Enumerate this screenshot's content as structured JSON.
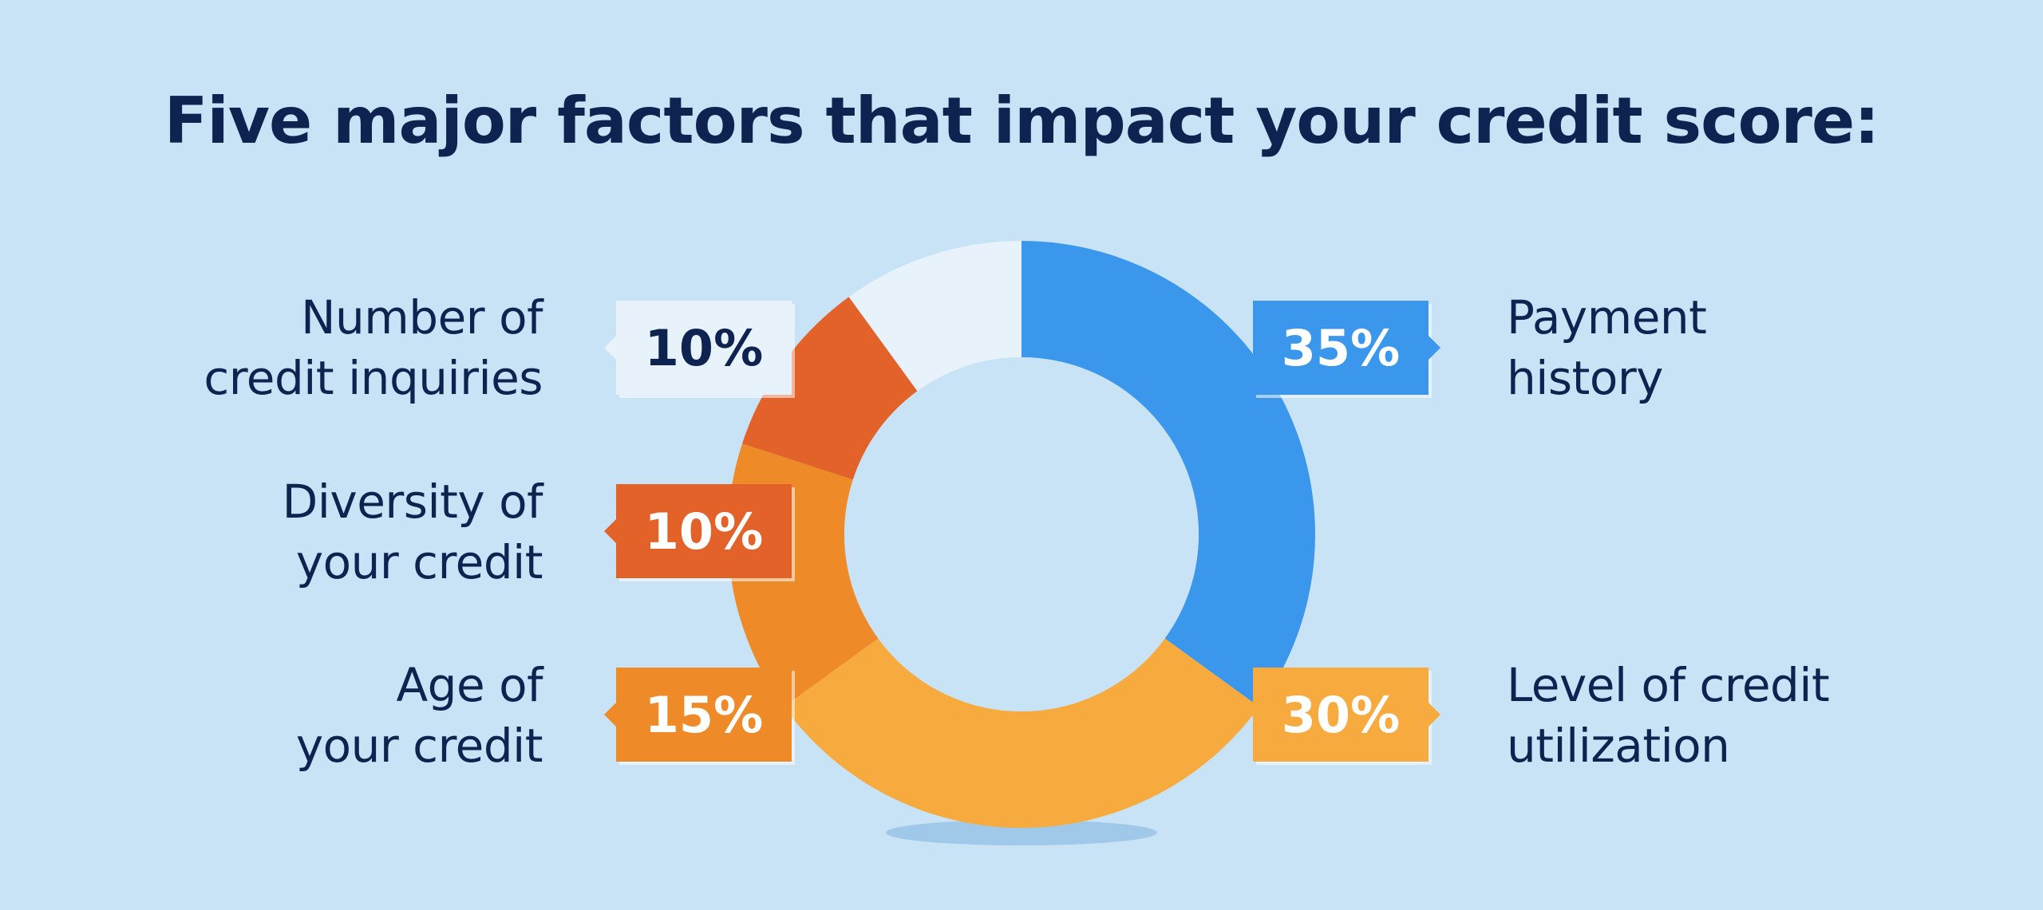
{
  "chart_data": {
    "type": "pie",
    "title": "Five major factors that impact your credit score:",
    "categories": [
      "Payment history",
      "Level of credit utilization",
      "Age of your credit",
      "Diversity of your credit",
      "Number of credit inquiries"
    ],
    "values": [
      35,
      30,
      15,
      10,
      10
    ],
    "value_labels": [
      "35%",
      "30%",
      "15%",
      "10%",
      "10%"
    ],
    "label_lines": [
      [
        "Payment",
        "history"
      ],
      [
        "Level of credit",
        "utilization"
      ],
      [
        "Age of",
        "your credit"
      ],
      [
        "Diversity of",
        "your credit"
      ],
      [
        "Number of",
        "credit inquiries"
      ]
    ],
    "colors": [
      "#3b97ec",
      "#f7aa3e",
      "#ee8a27",
      "#e3622a",
      "#e8f2fb"
    ],
    "badge_text_colors": [
      "#ffffff",
      "#ffffff",
      "#ffffff",
      "#ffffff",
      "#0e2350"
    ],
    "background_color": "#c8e3f6",
    "text_color": "#0e2350"
  }
}
